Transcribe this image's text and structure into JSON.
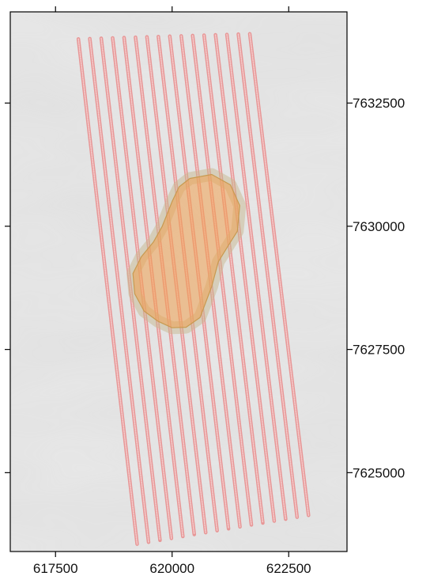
{
  "x_axis": {
    "ticks": [
      617500,
      620000,
      622500
    ],
    "range": [
      616530,
      623750
    ],
    "position": "bottom, with tick marks mirrored on top"
  },
  "y_axis": {
    "ticks": [
      7625000,
      7627500,
      7630000,
      7632500
    ],
    "range": [
      7623400,
      7634350
    ],
    "position": "right, with tick marks mirrored on left"
  },
  "background": {
    "type": "hillshade relief",
    "color": "#e8e8e8"
  },
  "survey_lines": {
    "color": "#e88a8a",
    "count": 16,
    "first_start": [
      617990,
      7633800
    ],
    "first_end": [
      619250,
      7623550
    ],
    "spacing_x": 245,
    "north_shift_per_line": 7,
    "south_shift_per_line": 39
  },
  "target_area": {
    "fill_color": "#f0a050",
    "outline_color": "#c8b890",
    "vertices": [
      [
        620380,
        7630970
      ],
      [
        620850,
        7631050
      ],
      [
        621250,
        7630840
      ],
      [
        621450,
        7630420
      ],
      [
        621400,
        7629900
      ],
      [
        621200,
        7629600
      ],
      [
        620990,
        7629280
      ],
      [
        620850,
        7628780
      ],
      [
        620600,
        7628150
      ],
      [
        620300,
        7627950
      ],
      [
        620000,
        7627940
      ],
      [
        619700,
        7628070
      ],
      [
        619400,
        7628280
      ],
      [
        619200,
        7628630
      ],
      [
        619160,
        7629040
      ],
      [
        619340,
        7629380
      ],
      [
        619600,
        7629680
      ],
      [
        619790,
        7630000
      ],
      [
        620000,
        7630500
      ],
      [
        620150,
        7630800
      ]
    ]
  }
}
